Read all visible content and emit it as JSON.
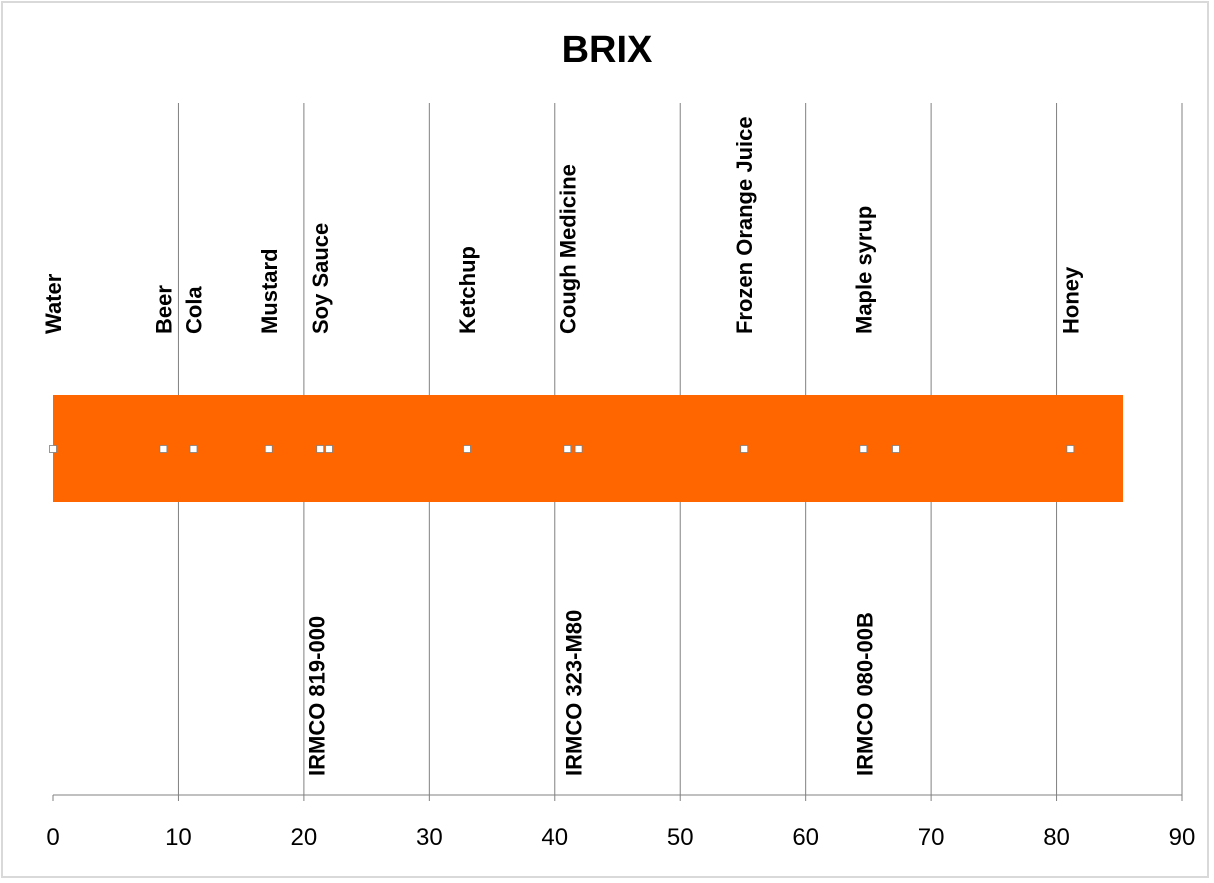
{
  "chart_data": {
    "type": "scatter",
    "title": "BRIX",
    "xlabel": "",
    "ylabel": "",
    "xlim": [
      0,
      90
    ],
    "x_ticks": [
      "0",
      "10",
      "20",
      "30",
      "40",
      "50",
      "60",
      "70",
      "80",
      "90"
    ],
    "grid": "vertical",
    "band": {
      "from": 0,
      "to": 85.3,
      "color": "#FF6600"
    },
    "points": [
      {
        "name": "Water",
        "x": 0
      },
      {
        "name": "Beer",
        "x": 8.8
      },
      {
        "name": "Cola",
        "x": 11.2
      },
      {
        "name": "Mustard",
        "x": 17.2
      },
      {
        "name": "Soy Sauce",
        "x": 21.3
      },
      {
        "name": "",
        "x": 22.0
      },
      {
        "name": "Ketchup",
        "x": 33.0
      },
      {
        "name": "Cough Medicine",
        "x": 41.0
      },
      {
        "name": "",
        "x": 41.9
      },
      {
        "name": "Frozen Orange Juice",
        "x": 55.1
      },
      {
        "name": "Maple syrup",
        "x": 64.6
      },
      {
        "name": "",
        "x": 67.2
      },
      {
        "name": "Honey",
        "x": 81.1
      }
    ],
    "products": [
      {
        "name": "IRMCO 819-000",
        "x": 21.0
      },
      {
        "name": "IRMCO 323-M80",
        "x": 41.5
      },
      {
        "name": "IRMCO 080-00B",
        "x": 64.7
      }
    ],
    "colors": {
      "band": "#FF6600",
      "marker": "#FFFFFF",
      "grid": "#808080"
    }
  }
}
